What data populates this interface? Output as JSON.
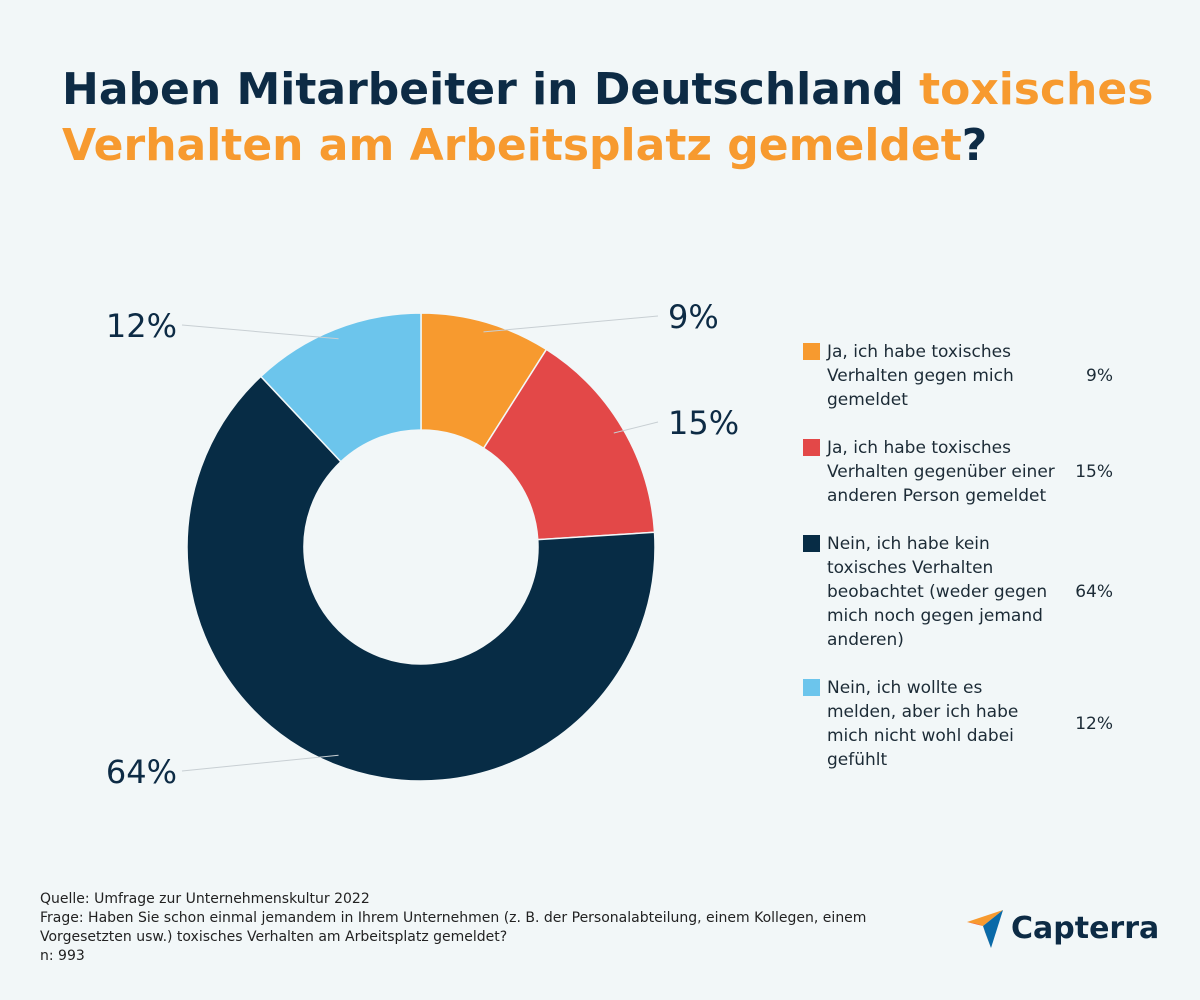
{
  "title": {
    "part1": "Haben Mitarbeiter in Deutschland ",
    "highlight": "toxisches Verhalten am Arbeitsplatz gemeldet",
    "part2": "?"
  },
  "colors": {
    "title_dark": "#0d2b45",
    "title_accent": "#f79a2f",
    "background": "#f2f7f8"
  },
  "chart_data": {
    "type": "pie",
    "subtype": "donut",
    "title": "Haben Mitarbeiter in Deutschland toxisches Verhalten am Arbeitsplatz gemeldet?",
    "slices": [
      {
        "label": "Ja, ich habe toxisches Verhalten gegen mich gemeldet",
        "value": 9,
        "display": "9%",
        "color": "#f79a2f",
        "label_side": "right"
      },
      {
        "label": "Ja, ich habe toxisches Verhalten gegenüber einer anderen Person gemeldet",
        "value": 15,
        "display": "15%",
        "color": "#e34848",
        "label_side": "right"
      },
      {
        "label": "Nein, ich habe kein toxisches Verhalten beobachtet (weder gegen mich noch gegen jemand anderen)",
        "value": 64,
        "display": "64%",
        "color": "#072c45",
        "label_side": "left"
      },
      {
        "label": "Nein, ich wollte es melden, aber ich habe mich nicht wohl dabei gefühlt",
        "value": 12,
        "display": "12%",
        "color": "#6cc5ec",
        "label_side": "left"
      }
    ],
    "legend_position": "right"
  },
  "legend": {
    "items": [
      {
        "label": "Ja, ich habe toxisches Verhalten gegen mich gemeldet",
        "value": "9%",
        "color": "#f79a2f"
      },
      {
        "label": "Ja, ich habe toxisches Verhalten gegenüber einer anderen Person gemeldet",
        "value": "15%",
        "color": "#e34848"
      },
      {
        "label": "Nein, ich habe kein toxisches Verhalten beobachtet (weder gegen mich noch gegen jemand anderen)",
        "value": "64%",
        "color": "#072c45"
      },
      {
        "label": "Nein, ich wollte es melden, aber ich habe mich nicht wohl dabei gefühlt",
        "value": "12%",
        "color": "#6cc5ec"
      }
    ]
  },
  "footer": {
    "source": "Quelle: Umfrage zur Unternehmenskultur 2022",
    "question_line1": "Frage: Haben Sie schon einmal jemandem in Ihrem Unternehmen (z. B. der Personalabteilung, einem Kollegen, einem",
    "question_line2": "Vorgesetzten usw.) toxisches Verhalten am Arbeitsplatz gemeldet?",
    "sample": "n: 993"
  },
  "logo": {
    "text": "Capterra",
    "icon": "capterra-arrow-icon"
  }
}
